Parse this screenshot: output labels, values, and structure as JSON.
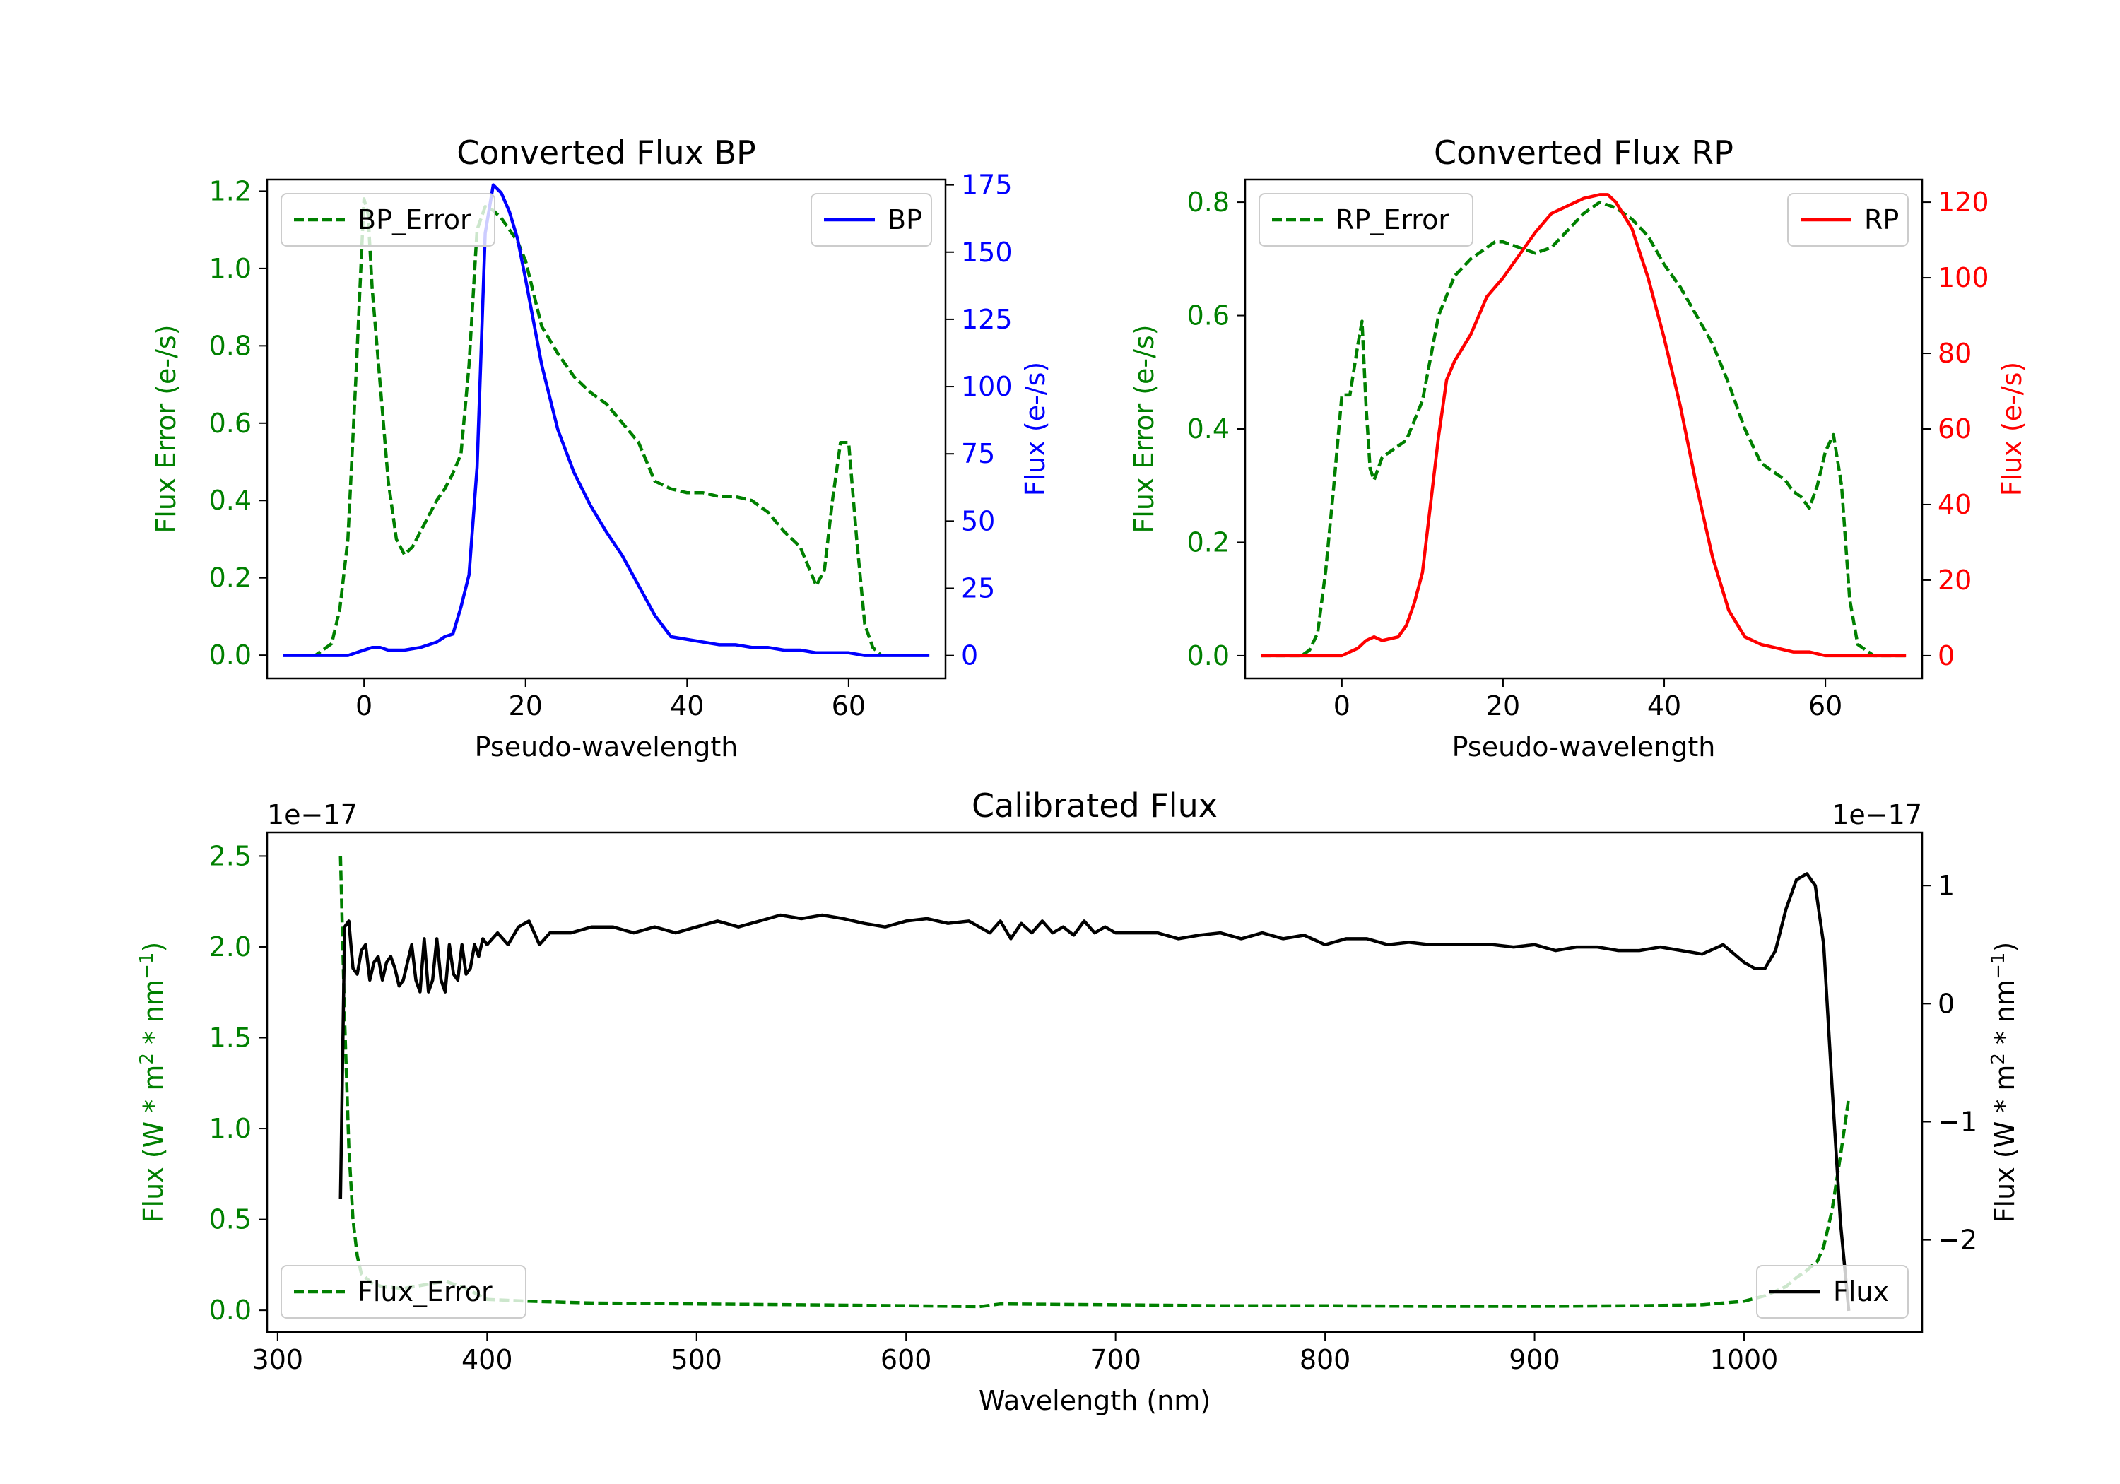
{
  "colors": {
    "error": "#008000",
    "bp": "#0000ff",
    "rp": "#ff0000",
    "flux": "#000000",
    "axis": "#000000"
  },
  "chart_data": [
    {
      "id": "bp",
      "type": "line",
      "title": "Converted Flux BP",
      "xlabel": "Pseudo-wavelength",
      "ylabel_left": "Flux Error (e-/s)",
      "ylabel_right": "Flux (e-/s)",
      "xlim": [
        -12,
        72
      ],
      "ylim_left": [
        -0.06,
        1.23
      ],
      "ylim_right": [
        -8.5,
        177
      ],
      "xticks": [
        0,
        20,
        40,
        60
      ],
      "yticks_left": [
        0.0,
        0.2,
        0.4,
        0.6,
        0.8,
        1.0,
        1.2
      ],
      "yticks_right": [
        0,
        25,
        50,
        75,
        100,
        125,
        150,
        175
      ],
      "ytick_labels_left": [
        "0.0",
        "0.2",
        "0.4",
        "0.6",
        "0.8",
        "1.0",
        "1.2"
      ],
      "ytick_labels_right": [
        "0",
        "25",
        "50",
        "75",
        "100",
        "125",
        "150",
        "175"
      ],
      "legend_left_position": "upper-left",
      "legend_right_position": "upper-right",
      "series": [
        {
          "name": "BP_Error",
          "axis": "left",
          "style": "dashed",
          "color_key": "error",
          "x": [
            -10,
            -6,
            -4,
            -3,
            -2,
            -1,
            0,
            0.5,
            1,
            2,
            3,
            4,
            5,
            6,
            7,
            8,
            9,
            10,
            11,
            12,
            13,
            14,
            15,
            16,
            17,
            18,
            19,
            20,
            22,
            24,
            26,
            28,
            30,
            32,
            34,
            36,
            38,
            40,
            42,
            44,
            46,
            48,
            50,
            52,
            54,
            56,
            57,
            58,
            59,
            60,
            61,
            62,
            63,
            64,
            66,
            68,
            70
          ],
          "y": [
            0.0,
            0.0,
            0.03,
            0.12,
            0.3,
            0.72,
            1.18,
            1.14,
            0.95,
            0.7,
            0.45,
            0.3,
            0.26,
            0.28,
            0.32,
            0.36,
            0.4,
            0.43,
            0.47,
            0.52,
            0.75,
            1.1,
            1.16,
            1.15,
            1.13,
            1.1,
            1.07,
            1.02,
            0.85,
            0.78,
            0.72,
            0.68,
            0.65,
            0.6,
            0.55,
            0.45,
            0.43,
            0.42,
            0.42,
            0.41,
            0.41,
            0.4,
            0.37,
            0.32,
            0.28,
            0.18,
            0.22,
            0.4,
            0.55,
            0.55,
            0.3,
            0.08,
            0.02,
            0.0,
            0.0,
            0.0,
            0.0
          ]
        },
        {
          "name": "BP",
          "axis": "right",
          "style": "solid",
          "color_key": "bp",
          "x": [
            -10,
            -2,
            0,
            1,
            2,
            3,
            5,
            7,
            9,
            10,
            11,
            12,
            13,
            14,
            15,
            16,
            17,
            18,
            19,
            20,
            22,
            24,
            26,
            28,
            30,
            32,
            34,
            36,
            38,
            40,
            42,
            44,
            46,
            48,
            50,
            52,
            54,
            56,
            58,
            60,
            62,
            64,
            66,
            68,
            70
          ],
          "y": [
            0,
            0,
            2,
            3,
            3,
            2,
            2,
            3,
            5,
            7,
            8,
            18,
            30,
            70,
            157,
            175,
            172,
            165,
            155,
            140,
            108,
            84,
            68,
            56,
            46,
            37,
            26,
            15,
            7,
            6,
            5,
            4,
            4,
            3,
            3,
            2,
            2,
            1,
            1,
            1,
            0,
            0,
            0,
            0,
            0
          ]
        }
      ]
    },
    {
      "id": "rp",
      "type": "line",
      "title": "Converted Flux RP",
      "xlabel": "Pseudo-wavelength",
      "ylabel_left": "Flux Error (e-/s)",
      "ylabel_right": "Flux (e-/s)",
      "xlim": [
        -12,
        72
      ],
      "ylim_left": [
        -0.04,
        0.84
      ],
      "ylim_right": [
        -6.0,
        126
      ],
      "xticks": [
        0,
        20,
        40,
        60
      ],
      "yticks_left": [
        0.0,
        0.2,
        0.4,
        0.6,
        0.8
      ],
      "yticks_right": [
        0,
        20,
        40,
        60,
        80,
        100,
        120
      ],
      "ytick_labels_left": [
        "0.0",
        "0.2",
        "0.4",
        "0.6",
        "0.8"
      ],
      "ytick_labels_right": [
        "0",
        "20",
        "40",
        "60",
        "80",
        "100",
        "120"
      ],
      "legend_left_position": "upper-left",
      "legend_right_position": "upper-right",
      "series": [
        {
          "name": "RP_Error",
          "axis": "left",
          "style": "dashed",
          "color_key": "error",
          "x": [
            -10,
            -5,
            -4,
            -3,
            -2,
            -1,
            0,
            1,
            2,
            2.5,
            3,
            3.5,
            4,
            5,
            6,
            8,
            10,
            12,
            14,
            16,
            18,
            19,
            20,
            22,
            24,
            26,
            28,
            30,
            31,
            32,
            34,
            36,
            38,
            40,
            42,
            44,
            46,
            48,
            50,
            52,
            54,
            55,
            56,
            57,
            58,
            59,
            60,
            61,
            62,
            63,
            64,
            66,
            68,
            70
          ],
          "y": [
            0.0,
            0.0,
            0.01,
            0.04,
            0.15,
            0.3,
            0.46,
            0.46,
            0.55,
            0.59,
            0.44,
            0.33,
            0.31,
            0.35,
            0.36,
            0.38,
            0.45,
            0.6,
            0.67,
            0.7,
            0.72,
            0.73,
            0.73,
            0.72,
            0.71,
            0.72,
            0.75,
            0.78,
            0.79,
            0.8,
            0.79,
            0.77,
            0.74,
            0.69,
            0.65,
            0.6,
            0.55,
            0.48,
            0.4,
            0.34,
            0.32,
            0.31,
            0.29,
            0.28,
            0.26,
            0.3,
            0.36,
            0.39,
            0.3,
            0.1,
            0.02,
            0.0,
            0.0,
            0.0
          ]
        },
        {
          "name": "RP",
          "axis": "right",
          "style": "solid",
          "color_key": "rp",
          "x": [
            -10,
            0,
            2,
            3,
            4,
            5,
            7,
            8,
            9,
            10,
            11,
            12,
            13,
            14,
            16,
            18,
            20,
            22,
            24,
            26,
            28,
            30,
            32,
            33,
            34,
            36,
            38,
            40,
            42,
            44,
            46,
            48,
            50,
            52,
            54,
            56,
            58,
            60,
            62,
            64,
            66,
            68,
            70
          ],
          "y": [
            0,
            0,
            2,
            4,
            5,
            4,
            5,
            8,
            14,
            22,
            40,
            58,
            73,
            78,
            85,
            95,
            100,
            106,
            112,
            117,
            119,
            121,
            122,
            122,
            120,
            113,
            100,
            84,
            66,
            45,
            26,
            12,
            5,
            3,
            2,
            1,
            1,
            0,
            0,
            0,
            0,
            0,
            0
          ]
        }
      ]
    },
    {
      "id": "calibrated",
      "type": "line",
      "title": "Calibrated Flux",
      "xlabel": "Wavelength (nm)",
      "ylabel_left": "Flux (W * m$^2$ * nm$^{-1}$)",
      "ylabel_right": "Flux (W * m$^2$ * nm$^{-1}$)",
      "ylabel_left_parts": [
        "Flux (W * m",
        "2",
        " * nm",
        "−1",
        ")"
      ],
      "ylabel_right_parts": [
        "Flux (W * m",
        "2",
        " * nm",
        "−1",
        ")"
      ],
      "offset_left": "1e−17",
      "offset_right": "1e−17",
      "xlim": [
        295,
        1085
      ],
      "ylim_left": [
        -0.12,
        2.63
      ],
      "ylim_right": [
        -2.78,
        1.45
      ],
      "xticks": [
        300,
        400,
        500,
        600,
        700,
        800,
        900,
        1000
      ],
      "yticks_left": [
        0.0,
        0.5,
        1.0,
        1.5,
        2.0,
        2.5
      ],
      "yticks_right": [
        -2,
        -1,
        0,
        1
      ],
      "ytick_labels_left": [
        "0.0",
        "0.5",
        "1.0",
        "1.5",
        "2.0",
        "2.5"
      ],
      "ytick_labels_right": [
        "−2",
        "−1",
        "0",
        "1"
      ],
      "legend_left_position": "lower-left",
      "legend_right_position": "lower-right",
      "series": [
        {
          "name": "Flux_Error",
          "axis": "left",
          "style": "dashed",
          "color_key": "error",
          "x": [
            330,
            332,
            334,
            336,
            338,
            340,
            345,
            350,
            360,
            380,
            390,
            400,
            420,
            450,
            500,
            550,
            600,
            635,
            645,
            700,
            750,
            800,
            850,
            900,
            950,
            980,
            1000,
            1010,
            1020,
            1025,
            1030,
            1035,
            1038,
            1042,
            1046,
            1050
          ],
          "y": [
            2.5,
            1.6,
            0.9,
            0.5,
            0.3,
            0.2,
            0.15,
            0.13,
            0.12,
            0.16,
            0.12,
            0.06,
            0.05,
            0.04,
            0.035,
            0.03,
            0.025,
            0.02,
            0.035,
            0.03,
            0.025,
            0.025,
            0.022,
            0.022,
            0.025,
            0.03,
            0.05,
            0.08,
            0.13,
            0.18,
            0.22,
            0.27,
            0.35,
            0.55,
            0.85,
            1.17
          ]
        },
        {
          "name": "Flux",
          "axis": "right",
          "style": "solid",
          "color_key": "flux",
          "x": [
            330,
            332,
            334,
            336,
            338,
            340,
            342,
            344,
            346,
            348,
            350,
            352,
            354,
            356,
            358,
            360,
            362,
            364,
            366,
            368,
            370,
            372,
            374,
            376,
            378,
            380,
            382,
            384,
            386,
            388,
            390,
            392,
            394,
            396,
            398,
            400,
            405,
            410,
            415,
            420,
            425,
            430,
            435,
            440,
            450,
            460,
            470,
            480,
            490,
            500,
            510,
            520,
            530,
            540,
            550,
            560,
            570,
            580,
            590,
            600,
            610,
            620,
            630,
            640,
            645,
            650,
            655,
            660,
            665,
            670,
            675,
            680,
            685,
            690,
            695,
            700,
            710,
            720,
            730,
            740,
            750,
            760,
            770,
            780,
            790,
            800,
            810,
            820,
            830,
            840,
            850,
            860,
            870,
            880,
            890,
            900,
            910,
            920,
            930,
            940,
            950,
            960,
            970,
            980,
            990,
            1000,
            1005,
            1010,
            1015,
            1020,
            1025,
            1030,
            1034,
            1038,
            1042,
            1046,
            1050
          ],
          "y": [
            -1.65,
            0.65,
            0.7,
            0.3,
            0.25,
            0.45,
            0.5,
            0.2,
            0.35,
            0.4,
            0.2,
            0.35,
            0.4,
            0.3,
            0.15,
            0.2,
            0.35,
            0.5,
            0.2,
            0.1,
            0.55,
            0.1,
            0.2,
            0.55,
            0.2,
            0.1,
            0.5,
            0.25,
            0.2,
            0.5,
            0.25,
            0.3,
            0.5,
            0.4,
            0.55,
            0.5,
            0.6,
            0.5,
            0.65,
            0.7,
            0.5,
            0.6,
            0.6,
            0.6,
            0.65,
            0.65,
            0.6,
            0.65,
            0.6,
            0.65,
            0.7,
            0.65,
            0.7,
            0.75,
            0.72,
            0.75,
            0.72,
            0.68,
            0.65,
            0.7,
            0.72,
            0.68,
            0.7,
            0.6,
            0.7,
            0.55,
            0.68,
            0.6,
            0.7,
            0.6,
            0.65,
            0.58,
            0.7,
            0.6,
            0.65,
            0.6,
            0.6,
            0.6,
            0.55,
            0.58,
            0.6,
            0.55,
            0.6,
            0.55,
            0.58,
            0.5,
            0.55,
            0.55,
            0.5,
            0.52,
            0.5,
            0.5,
            0.5,
            0.5,
            0.48,
            0.5,
            0.45,
            0.48,
            0.48,
            0.45,
            0.45,
            0.48,
            0.45,
            0.42,
            0.5,
            0.35,
            0.3,
            0.3,
            0.45,
            0.8,
            1.05,
            1.1,
            1.0,
            0.5,
            -0.7,
            -1.85,
            -2.6
          ]
        }
      ]
    }
  ]
}
